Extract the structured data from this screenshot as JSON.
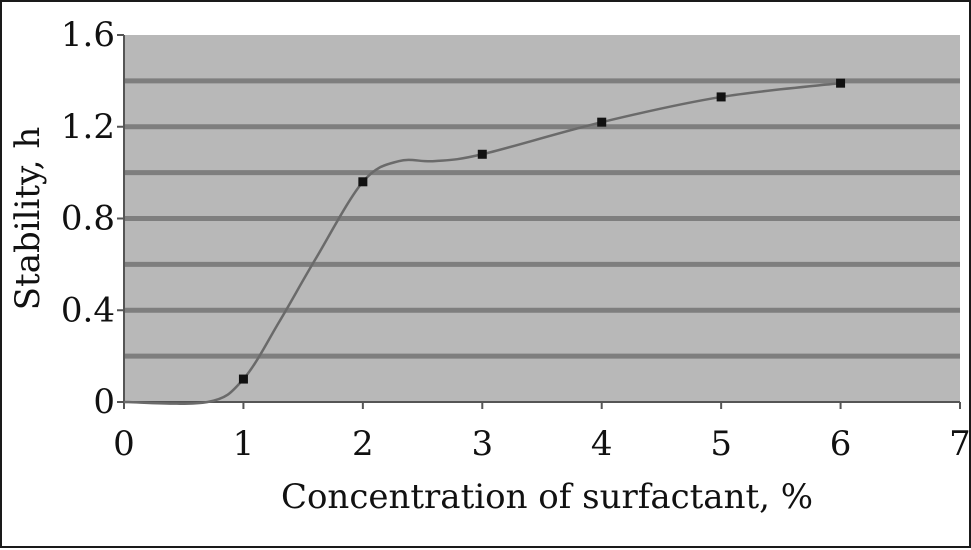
{
  "chart_data": {
    "type": "line",
    "title": "",
    "xlabel": "Concentration of surfactant, %",
    "ylabel": "Stability, h",
    "xlim": [
      0,
      7
    ],
    "ylim": [
      0,
      1.6
    ],
    "x_ticks": [
      0,
      1,
      2,
      3,
      4,
      5,
      6,
      7
    ],
    "x_tick_labels": [
      "0",
      "1",
      "2",
      "3",
      "4",
      "5",
      "6",
      "7"
    ],
    "y_ticks": [
      0,
      0.4,
      0.8,
      1.2,
      1.6
    ],
    "y_tick_labels": [
      "0",
      "0.4",
      "0.8",
      "1.2",
      "1.6"
    ],
    "gridlines_y": [
      0.2,
      0.4,
      0.6,
      0.8,
      1.0,
      1.2,
      1.4
    ],
    "grid": true,
    "legend": "none",
    "series": [
      {
        "points": [
          {
            "x": 1,
            "y": 0.1
          },
          {
            "x": 2,
            "y": 0.96
          },
          {
            "x": 3,
            "y": 1.08
          },
          {
            "x": 4,
            "y": 1.22
          },
          {
            "x": 5,
            "y": 1.33
          },
          {
            "x": 6,
            "y": 1.39
          }
        ],
        "curve": [
          [
            0,
            0
          ],
          [
            0.7,
            0.0
          ],
          [
            1.0,
            0.1
          ],
          [
            1.3,
            0.35
          ],
          [
            1.6,
            0.62
          ],
          [
            2.0,
            0.96
          ],
          [
            2.3,
            1.05
          ],
          [
            2.6,
            1.05
          ],
          [
            3.0,
            1.08
          ],
          [
            4.0,
            1.22
          ],
          [
            5.0,
            1.33
          ],
          [
            6.0,
            1.39
          ]
        ]
      }
    ],
    "colors": {
      "plot_background": "#b8b8b8",
      "gridline": "#7e7e7e",
      "line": "#6a6a6a",
      "marker": "#111111"
    }
  }
}
